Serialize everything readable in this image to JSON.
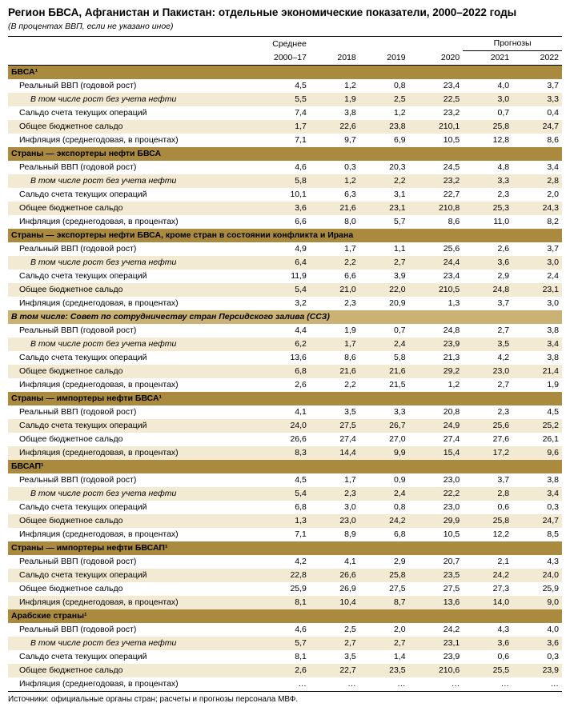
{
  "colors": {
    "section_bg": "#a98a3f",
    "section_italic_bg": "#c9b274",
    "stripe_bg": "#f3ead3",
    "text": "#000000",
    "background": "#ffffff"
  },
  "title": "Регион БВСА, Афганистан и Пакистан: отдельные экономические показатели, 2000–2022 годы",
  "subtitle": "(В процентах ВВП, если не указано иное)",
  "forecast_label": "Прогнозы",
  "columns": [
    "Среднее 2000–17",
    "2018",
    "2019",
    "2020",
    "2021",
    "2022"
  ],
  "col_breaks": {
    "avg": "Среднее",
    "avg_years": "2000–17"
  },
  "source": "Источники: официальные органы стран; расчеты и прогнозы персонала МВФ.",
  "sections": [
    {
      "type": "section",
      "title": "БВСА¹",
      "rows": [
        {
          "label": "Реальный ВВП (годовой рост)",
          "indent": 1,
          "stripe": false,
          "v": [
            "4,5",
            "1,2",
            "0,8",
            "23,4",
            "4,0",
            "3,7"
          ]
        },
        {
          "label": "В том числе рост без учета нефти",
          "indent": 2,
          "stripe": true,
          "v": [
            "5,5",
            "1,9",
            "2,5",
            "22,5",
            "3,0",
            "3,3"
          ]
        },
        {
          "label": "Сальдо счета текущих операций",
          "indent": 1,
          "stripe": false,
          "v": [
            "7,4",
            "3,8",
            "1,2",
            "23,2",
            "0,7",
            "0,4"
          ]
        },
        {
          "label": "Общее бюджетное сальдо",
          "indent": 1,
          "stripe": true,
          "v": [
            "1,7",
            "22,6",
            "23,8",
            "210,1",
            "25,8",
            "24,7"
          ]
        },
        {
          "label": "Инфляция (среднегодовая, в процентах)",
          "indent": 1,
          "stripe": false,
          "v": [
            "7,1",
            "9,7",
            "6,9",
            "10,5",
            "12,8",
            "8,6"
          ]
        }
      ]
    },
    {
      "type": "section",
      "title": "Страны — экспортеры нефти БВСА",
      "rows": [
        {
          "label": "Реальный ВВП (годовой рост)",
          "indent": 1,
          "stripe": false,
          "v": [
            "4,6",
            "0,3",
            "20,3",
            "24,5",
            "4,8",
            "3,4"
          ]
        },
        {
          "label": "В том числе рост без учета нефти",
          "indent": 2,
          "stripe": true,
          "v": [
            "5,8",
            "1,2",
            "2,2",
            "23,2",
            "3,3",
            "2,8"
          ]
        },
        {
          "label": "Сальдо счета текущих операций",
          "indent": 1,
          "stripe": false,
          "v": [
            "10,1",
            "6,3",
            "3,1",
            "22,7",
            "2,3",
            "2,0"
          ]
        },
        {
          "label": "Общее бюджетное сальдо",
          "indent": 1,
          "stripe": true,
          "v": [
            "3,6",
            "21,6",
            "23,1",
            "210,8",
            "25,3",
            "24,3"
          ]
        },
        {
          "label": "Инфляция (среднегодовая, в процентах)",
          "indent": 1,
          "stripe": false,
          "v": [
            "6,6",
            "8,0",
            "5,7",
            "8,6",
            "11,0",
            "8,2"
          ]
        }
      ]
    },
    {
      "type": "section",
      "title": "Страны — экспортеры нефти БВСА, кроме стран в состоянии конфликта и Ирана",
      "rows": [
        {
          "label": "Реальный ВВП (годовой рост)",
          "indent": 1,
          "stripe": false,
          "v": [
            "4,9",
            "1,7",
            "1,1",
            "25,6",
            "2,6",
            "3,7"
          ]
        },
        {
          "label": "В том числе рост без учета нефти",
          "indent": 2,
          "stripe": true,
          "v": [
            "6,4",
            "2,2",
            "2,7",
            "24,4",
            "3,6",
            "3,0"
          ]
        },
        {
          "label": "Сальдо счета текущих операций",
          "indent": 1,
          "stripe": false,
          "v": [
            "11,9",
            "6,6",
            "3,9",
            "23,4",
            "2,9",
            "2,4"
          ]
        },
        {
          "label": "Общее бюджетное сальдо",
          "indent": 1,
          "stripe": true,
          "v": [
            "5,4",
            "21,0",
            "22,0",
            "210,5",
            "24,8",
            "23,1"
          ]
        },
        {
          "label": "Инфляция (среднегодовая, в процентах)",
          "indent": 1,
          "stripe": false,
          "v": [
            "3,2",
            "2,3",
            "20,9",
            "1,3",
            "3,7",
            "3,0"
          ]
        }
      ]
    },
    {
      "type": "section-italic",
      "title": "В том числе: Совет по сотрудничеству стран Персидского залива (ССЗ)",
      "rows": [
        {
          "label": "Реальный ВВП (годовой рост)",
          "indent": 1,
          "stripe": false,
          "v": [
            "4,4",
            "1,9",
            "0,7",
            "24,8",
            "2,7",
            "3,8"
          ]
        },
        {
          "label": "В том числе рост без учета нефти",
          "indent": 2,
          "stripe": true,
          "v": [
            "6,2",
            "1,7",
            "2,4",
            "23,9",
            "3,5",
            "3,4"
          ]
        },
        {
          "label": "Сальдо счета текущих операций",
          "indent": 1,
          "stripe": false,
          "v": [
            "13,6",
            "8,6",
            "5,8",
            "21,3",
            "4,2",
            "3,8"
          ]
        },
        {
          "label": "Общее бюджетное сальдо",
          "indent": 1,
          "stripe": true,
          "v": [
            "6,8",
            "21,6",
            "21,6",
            "29,2",
            "23,0",
            "21,4"
          ]
        },
        {
          "label": "Инфляция (среднегодовая, в процентах)",
          "indent": 1,
          "stripe": false,
          "v": [
            "2,6",
            "2,2",
            "21,5",
            "1,2",
            "2,7",
            "1,9"
          ]
        }
      ]
    },
    {
      "type": "section",
      "title": "Страны — импортеры нефти БВСА¹",
      "rows": [
        {
          "label": "Реальный ВВП (годовой рост)",
          "indent": 1,
          "stripe": false,
          "v": [
            "4,1",
            "3,5",
            "3,3",
            "20,8",
            "2,3",
            "4,5"
          ]
        },
        {
          "label": "Сальдо счета текущих операций",
          "indent": 1,
          "stripe": true,
          "v": [
            "24,0",
            "27,5",
            "26,7",
            "24,9",
            "25,6",
            "25,2"
          ]
        },
        {
          "label": "Общее бюджетное сальдо",
          "indent": 1,
          "stripe": false,
          "v": [
            "26,6",
            "27,4",
            "27,0",
            "27,4",
            "27,6",
            "26,1"
          ]
        },
        {
          "label": "Инфляция (среднегодовая, в процентах)",
          "indent": 1,
          "stripe": true,
          "v": [
            "8,3",
            "14,4",
            "9,9",
            "15,4",
            "17,2",
            "9,6"
          ]
        }
      ]
    },
    {
      "type": "section",
      "title": "БВСАП¹",
      "rows": [
        {
          "label": "Реальный ВВП (годовой рост)",
          "indent": 1,
          "stripe": false,
          "v": [
            "4,5",
            "1,7",
            "0,9",
            "23,0",
            "3,7",
            "3,8"
          ]
        },
        {
          "label": "В том числе рост без учета нефти",
          "indent": 2,
          "stripe": true,
          "v": [
            "5,4",
            "2,3",
            "2,4",
            "22,2",
            "2,8",
            "3,4"
          ]
        },
        {
          "label": "Сальдо счета текущих операций",
          "indent": 1,
          "stripe": false,
          "v": [
            "6,8",
            "3,0",
            "0,8",
            "23,0",
            "0,6",
            "0,3"
          ]
        },
        {
          "label": "Общее бюджетное сальдо",
          "indent": 1,
          "stripe": true,
          "v": [
            "1,3",
            "23,0",
            "24,2",
            "29,9",
            "25,8",
            "24,7"
          ]
        },
        {
          "label": "Инфляция (среднегодовая, в процентах)",
          "indent": 1,
          "stripe": false,
          "v": [
            "7,1",
            "8,9",
            "6,8",
            "10,5",
            "12,2",
            "8,5"
          ]
        }
      ]
    },
    {
      "type": "section",
      "title": "Страны — импортеры нефти БВСАП¹",
      "rows": [
        {
          "label": "Реальный ВВП (годовой рост)",
          "indent": 1,
          "stripe": false,
          "v": [
            "4,2",
            "4,1",
            "2,9",
            "20,7",
            "2,1",
            "4,3"
          ]
        },
        {
          "label": "Сальдо счета текущих операций",
          "indent": 1,
          "stripe": true,
          "v": [
            "22,8",
            "26,6",
            "25,8",
            "23,5",
            "24,2",
            "24,0"
          ]
        },
        {
          "label": "Общее бюджетное сальдо",
          "indent": 1,
          "stripe": false,
          "v": [
            "25,9",
            "26,9",
            "27,5",
            "27,5",
            "27,3",
            "25,9"
          ]
        },
        {
          "label": "Инфляция (среднегодовая, в процентах)",
          "indent": 1,
          "stripe": true,
          "v": [
            "8,1",
            "10,4",
            "8,7",
            "13,6",
            "14,0",
            "9,0"
          ]
        }
      ]
    },
    {
      "type": "section",
      "title": "Арабские страны¹",
      "rows": [
        {
          "label": "Реальный ВВП (годовой рост)",
          "indent": 1,
          "stripe": false,
          "v": [
            "4,6",
            "2,5",
            "2,0",
            "24,2",
            "4,3",
            "4,0"
          ]
        },
        {
          "label": "В том числе рост без учета нефти",
          "indent": 2,
          "stripe": true,
          "v": [
            "5,7",
            "2,7",
            "2,7",
            "23,1",
            "3,6",
            "3,6"
          ]
        },
        {
          "label": "Сальдо счета текущих операций",
          "indent": 1,
          "stripe": false,
          "v": [
            "8,1",
            "3,5",
            "1,4",
            "23,9",
            "0,6",
            "0,3"
          ]
        },
        {
          "label": "Общее бюджетное сальдо",
          "indent": 1,
          "stripe": true,
          "v": [
            "2,6",
            "22,7",
            "23,5",
            "210,6",
            "25,5",
            "23,9"
          ]
        },
        {
          "label": "Инфляция (среднегодовая, в процентах)",
          "indent": 1,
          "stripe": false,
          "last": true,
          "v": [
            "…",
            "…",
            "…",
            "…",
            "…",
            "…"
          ]
        }
      ]
    }
  ]
}
